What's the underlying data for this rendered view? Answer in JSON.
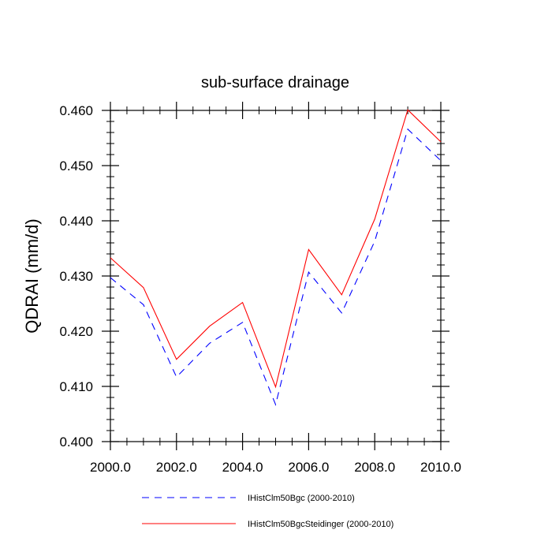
{
  "chart_data": {
    "type": "line",
    "title": "sub-surface drainage",
    "xlabel": "",
    "ylabel": "QDRAI  (mm/d)",
    "xlim": [
      2000,
      2010
    ],
    "ylim": [
      0.4,
      0.46
    ],
    "x_ticks": [
      "2000.0",
      "2002.0",
      "2004.0",
      "2006.0",
      "2008.0",
      "2010.0"
    ],
    "y_ticks": [
      "0.400",
      "0.410",
      "0.420",
      "0.430",
      "0.440",
      "0.450",
      "0.460"
    ],
    "x": [
      2000,
      2001,
      2002,
      2003,
      2004,
      2005,
      2006,
      2007,
      2008,
      2009,
      2010
    ],
    "series": [
      {
        "name": "IHistClm50Bgc (2000-2010)",
        "color": "#0000ff",
        "dash": "dashed",
        "values": [
          0.4297,
          0.4248,
          0.4117,
          0.4178,
          0.4216,
          0.4067,
          0.4307,
          0.4233,
          0.4363,
          0.4566,
          0.4509
        ]
      },
      {
        "name": "IHistClm50BgcSteidinger (2000-2010)",
        "color": "#ff0000",
        "dash": "solid",
        "values": [
          0.4333,
          0.4279,
          0.4149,
          0.4209,
          0.4252,
          0.4099,
          0.4348,
          0.4266,
          0.4403,
          0.4601,
          0.4543
        ]
      }
    ],
    "grid": false,
    "legend_position": "bottom"
  }
}
